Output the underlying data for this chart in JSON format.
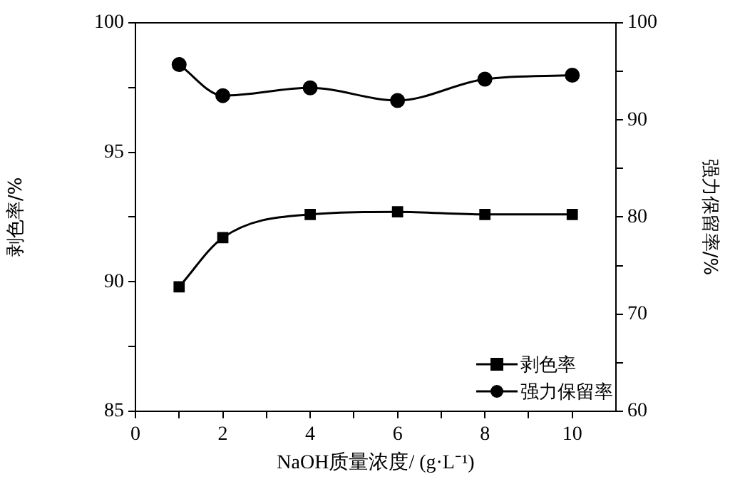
{
  "chart_data": {
    "type": "line",
    "xlabel": "NaOH质量浓度/ (g·L⁻¹)",
    "ylabel": "剥色率/%",
    "y2label": "强力保留率/%",
    "x": [
      1,
      2,
      4,
      6,
      8,
      10
    ],
    "series": [
      {
        "name": "剥色率",
        "color": "#000000",
        "marker": "square",
        "values": [
          89.8,
          91.7,
          92.6,
          92.7,
          92.6,
          92.6
        ]
      },
      {
        "name": "强力保留率",
        "color": "#000000",
        "marker": "circle",
        "axis": "y2",
        "values": [
          95.7,
          92.5,
          93.3,
          92.0,
          94.2,
          94.6
        ]
      }
    ],
    "xlim": [
      0,
      11
    ],
    "xticks": [
      0,
      {
        "value": 1,
        "label": null
      },
      2,
      {
        "value": 3,
        "label": null
      },
      4,
      {
        "value": 5,
        "label": null
      },
      6,
      {
        "value": 7,
        "label": null
      },
      8,
      {
        "value": 9,
        "label": null
      },
      10
    ],
    "ylim": [
      85,
      100
    ],
    "yticks": [
      85,
      {
        "value": 87.5,
        "label": null
      },
      90,
      {
        "value": 92.5,
        "label": null
      },
      95,
      {
        "value": 97.5,
        "label": null
      },
      100
    ],
    "y2lim": [
      60,
      100
    ],
    "y2ticks": [
      60,
      {
        "value": 65,
        "label": null
      },
      70,
      {
        "value": 75,
        "label": null
      },
      80,
      {
        "value": 85,
        "label": null
      },
      90,
      {
        "value": 95,
        "label": null
      },
      100
    ],
    "legend": "bottom right",
    "grid": false,
    "line_style": "solid"
  }
}
